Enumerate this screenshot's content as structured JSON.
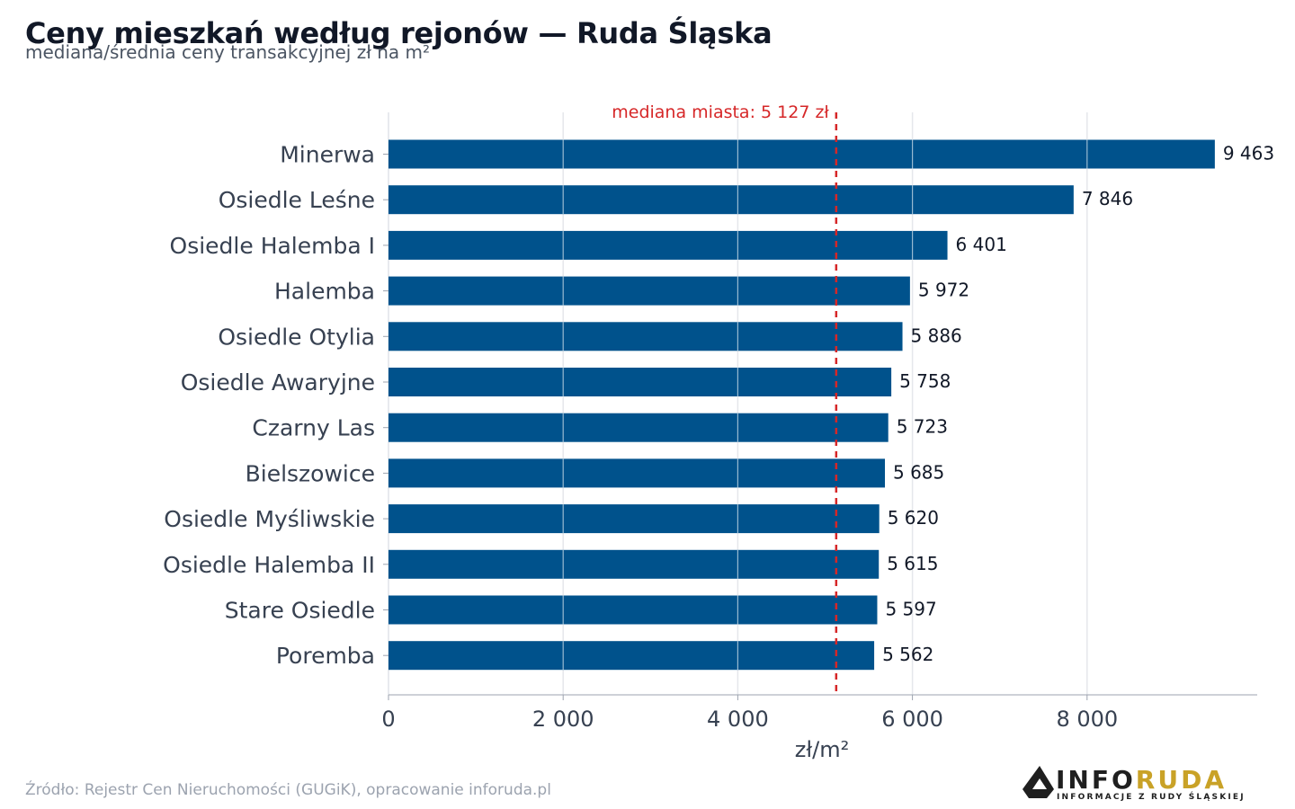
{
  "header": {
    "title": "Ceny mieszkań według rejonów — Ruda Śląska",
    "subtitle": "mediana/średnia ceny transakcyjnej zł na m²"
  },
  "footer": {
    "source": "Źródło: Rejestr Cen Nieruchomości (GUGiK), opracowanie inforuda.pl"
  },
  "logo": {
    "text_main_1": "INFO",
    "text_main_2": "RUDA",
    "text_sub": "INFORMACJE Z RUDY ŚLĄSKIEJ",
    "colors": {
      "dark": "#1f1f1f",
      "gold": "#c9a227"
    }
  },
  "chart_data": {
    "type": "bar",
    "orientation": "horizontal",
    "categories": [
      "Minerwa",
      "Osiedle Leśne",
      "Osiedle Halemba I",
      "Halemba",
      "Osiedle Otylia",
      "Osiedle Awaryjne",
      "Czarny Las",
      "Bielszowice",
      "Osiedle Myśliwskie",
      "Osiedle Halemba II",
      "Stare Osiedle",
      "Poremba"
    ],
    "values": [
      9463,
      7846,
      6401,
      5972,
      5886,
      5758,
      5723,
      5685,
      5620,
      5615,
      5597,
      5562
    ],
    "value_labels": [
      "9 463",
      "7 846",
      "6 401",
      "5 972",
      "5 886",
      "5 758",
      "5 723",
      "5 685",
      "5 620",
      "5 615",
      "5 597",
      "5 562"
    ],
    "xlabel": "zł/m²",
    "ylabel": "",
    "xlim": [
      0,
      9950
    ],
    "xticks": [
      0,
      2000,
      4000,
      6000,
      8000
    ],
    "xtick_labels": [
      "0",
      "2 000",
      "4 000",
      "6 000",
      "8 000"
    ],
    "grid": true,
    "legend": "none",
    "reference_line": {
      "value": 5127,
      "label": "mediana miasta: 5 127 zł",
      "style": "dashed"
    },
    "colors": {
      "bar": "#00528c",
      "reference": "#d62728",
      "grid": "#e5e7eb",
      "axis": "#9ca3af",
      "tick_text": "#374151",
      "value_text": "#111827"
    }
  }
}
